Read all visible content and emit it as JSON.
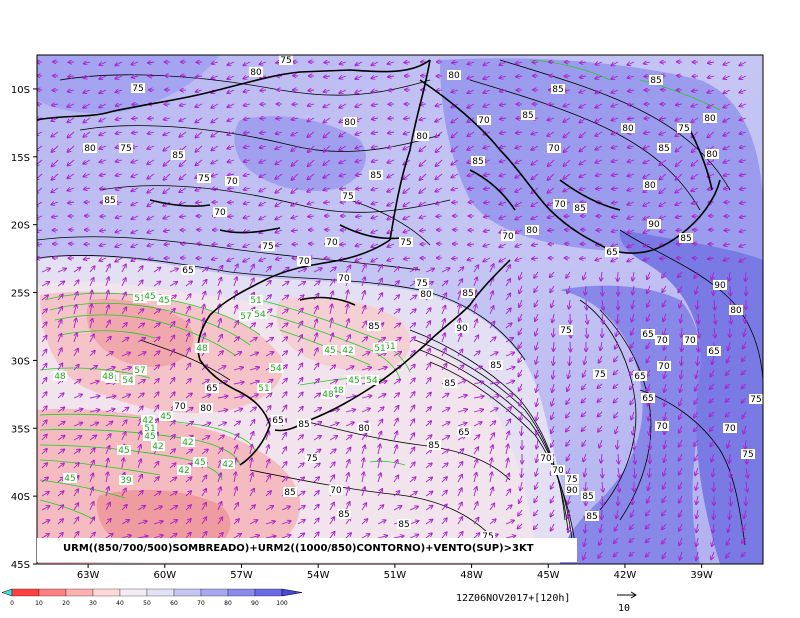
{
  "title": "URM((850/700/500)SOMBREADO)+URM2((1000/850)CONTORNO)+VENTO(SUP)>3KT",
  "timestamp": "12Z06NOV2017+[120h]",
  "vector_reference": "10",
  "latitude_labels": [
    "10S",
    "15S",
    "20S",
    "25S",
    "30S",
    "35S",
    "40S",
    "45S"
  ],
  "longitude_labels": [
    "63W",
    "60W",
    "57W",
    "54W",
    "51W",
    "48W",
    "45W",
    "42W",
    "39W"
  ],
  "colorbar_labels": [
    "0",
    "10",
    "20",
    "30",
    "40",
    "50",
    "60",
    "70",
    "80",
    "90",
    "100"
  ],
  "colorbar_colors": [
    "#ff4040",
    "#ff8080",
    "#ffb0b0",
    "#ffd8d8",
    "#f4eef4",
    "#e2e2f6",
    "#c6c6f4",
    "#a8a8f0",
    "#8a8aea",
    "#6a6ae4"
  ],
  "colors": {
    "shade_contour": "#000000",
    "lowlevel_contour": "#22cc22",
    "wind_vectors": "#aa22cc"
  },
  "shade_labels": [
    "75",
    "80",
    "75",
    "80",
    "85",
    "85",
    "80",
    "70",
    "85",
    "80",
    "80",
    "75",
    "85",
    "80",
    "75",
    "80",
    "85",
    "70",
    "85",
    "80",
    "75",
    "70",
    "85",
    "75",
    "80",
    "85",
    "70",
    "70",
    "85",
    "75",
    "70",
    "75",
    "70",
    "80",
    "90",
    "85",
    "65",
    "70",
    "65",
    "70",
    "75",
    "80",
    "90",
    "85",
    "85",
    "90",
    "80",
    "75",
    "65",
    "70",
    "70",
    "85",
    "85",
    "65",
    "75",
    "65",
    "70",
    "65",
    "70",
    "80",
    "65",
    "75",
    "65",
    "85",
    "80",
    "65",
    "70",
    "85",
    "70",
    "75",
    "70",
    "75",
    "85",
    "70",
    "85",
    "85",
    "90",
    "85",
    "85",
    "75",
    "75",
    "70"
  ],
  "green_labels": [
    "51",
    "45",
    "45",
    "51",
    "57",
    "54",
    "48",
    "51",
    "45",
    "42",
    "51",
    "54",
    "54",
    "51",
    "57",
    "48",
    "48",
    "54",
    "45",
    "51",
    "48",
    "48",
    "45",
    "42",
    "51",
    "45",
    "42",
    "45",
    "42",
    "42",
    "45",
    "42",
    "45",
    "39"
  ]
}
